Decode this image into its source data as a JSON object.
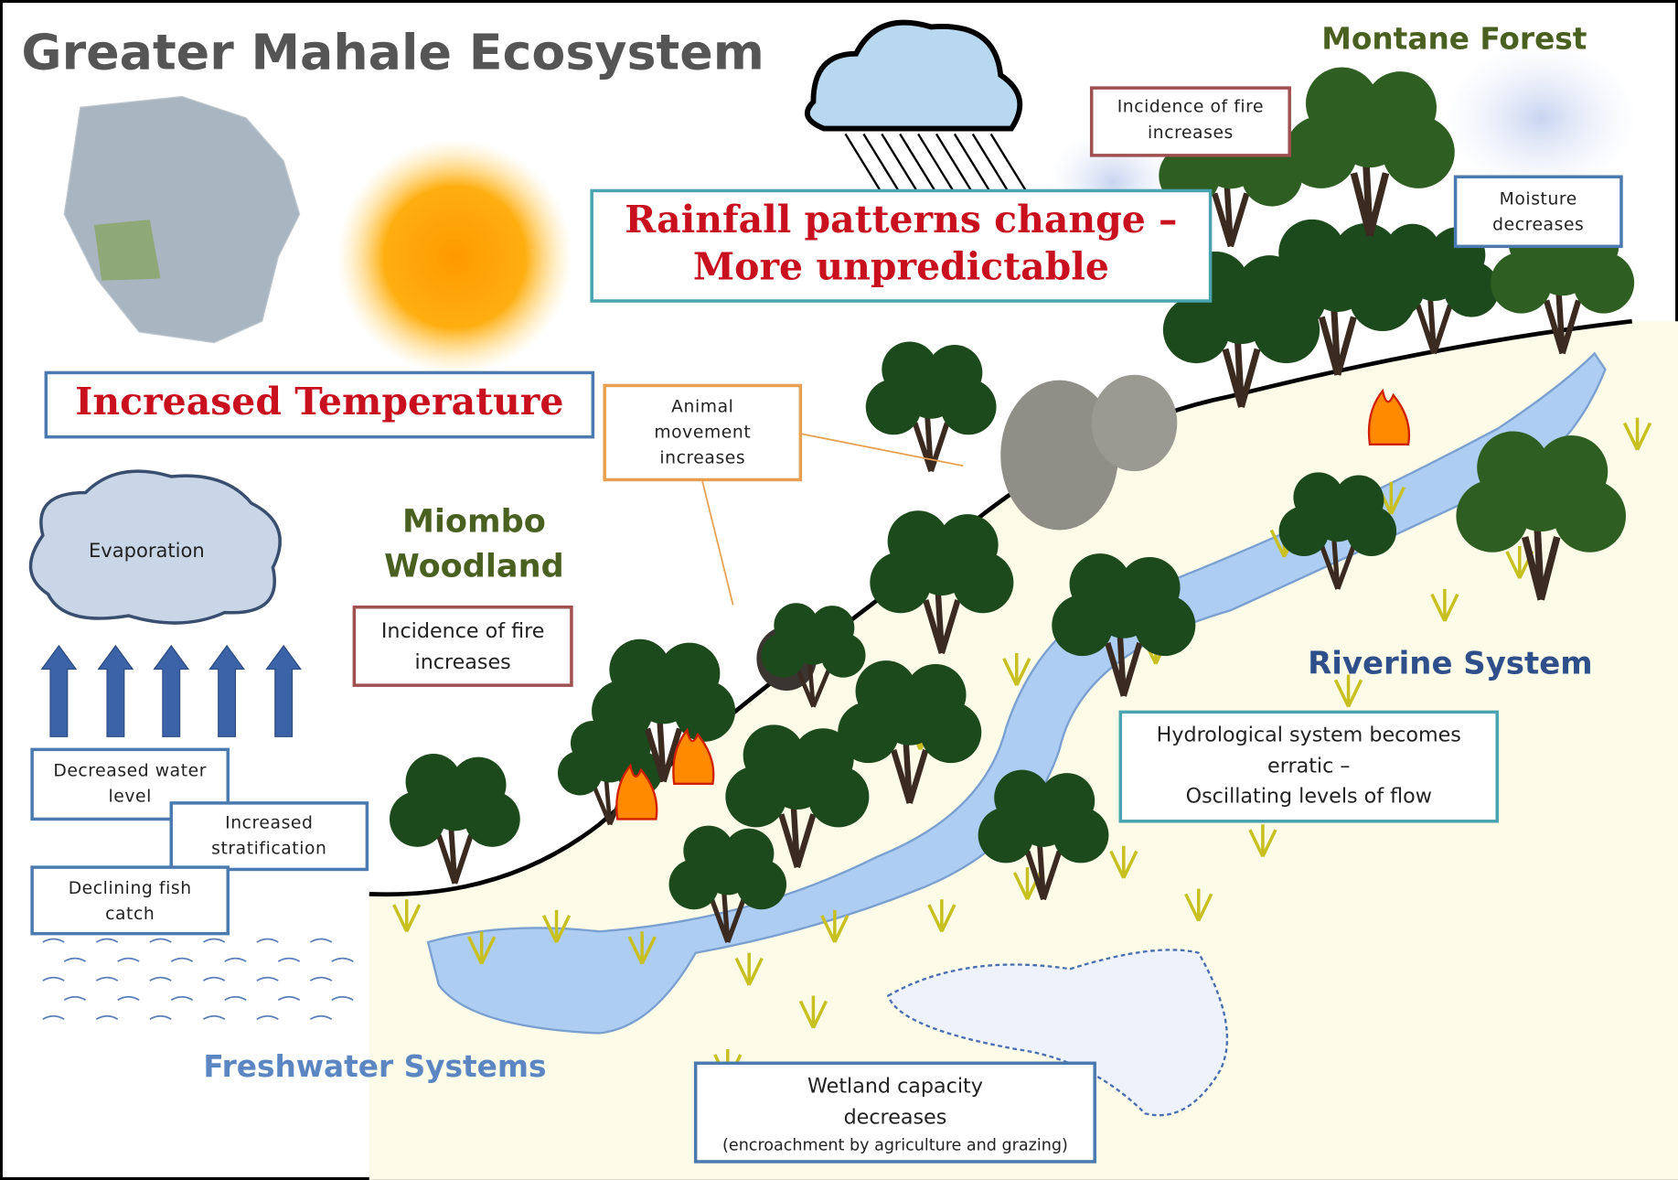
{
  "title": "Greater Mahale Ecosystem",
  "zones": {
    "montane": "Montane Forest",
    "miombo": [
      "Miombo",
      "Woodland"
    ],
    "riverine": "Riverine System",
    "freshwater": "Freshwater Systems"
  },
  "evaporation": "Evaporation",
  "boxes": {
    "montane_fire": [
      "Incidence of fire",
      "increases"
    ],
    "moisture": [
      "Moisture",
      "decreases"
    ],
    "rainfall": [
      "Rainfall patterns change –",
      "More unpredictable"
    ],
    "temperature": [
      "Increased Temperature"
    ],
    "animal": [
      "Animal",
      "movement",
      "increases"
    ],
    "miombo_fire": [
      "Incidence of fire",
      "increases"
    ],
    "hydrology": [
      "Hydrological system becomes",
      "erratic –",
      "Oscillating levels of flow"
    ],
    "wetland": [
      "Wetland capacity",
      "decreases",
      "(encroachment by agriculture and grazing)"
    ],
    "water_level": [
      "Decreased water",
      "level"
    ],
    "stratification": [
      "Increased",
      "stratification"
    ],
    "fish": [
      "Declining fish",
      "catch"
    ]
  }
}
